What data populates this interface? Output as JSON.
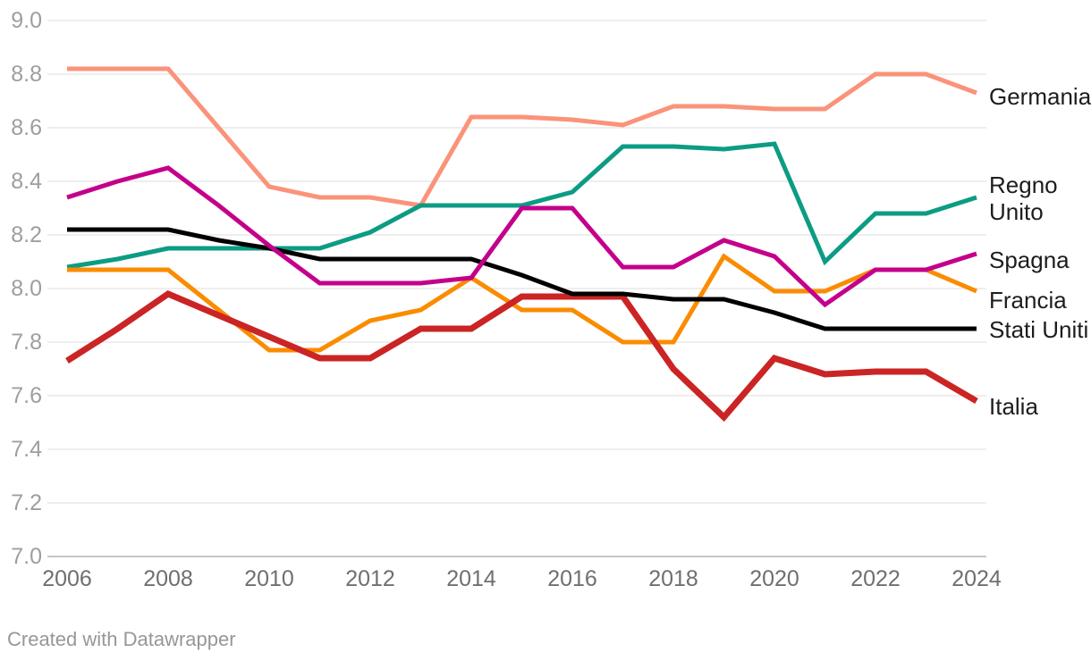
{
  "chart_data": {
    "type": "line",
    "title": "",
    "x": [
      2006,
      2007,
      2008,
      2009,
      2010,
      2011,
      2012,
      2013,
      2014,
      2015,
      2016,
      2017,
      2018,
      2019,
      2020,
      2021,
      2022,
      2023,
      2024
    ],
    "x_tick_labels": [
      "2006",
      "2008",
      "2010",
      "2012",
      "2014",
      "2016",
      "2018",
      "2020",
      "2022",
      "2024"
    ],
    "y_axis": {
      "min": 7.0,
      "max": 9.0,
      "step": 0.2,
      "tick_labels": [
        "9.0",
        "8.8",
        "8.6",
        "8.4",
        "8.2",
        "8.0",
        "7.8",
        "7.6",
        "7.4",
        "7.2",
        "7.0"
      ]
    },
    "grid": true,
    "legend_position": "direct-labels-right",
    "series": [
      {
        "name": "Germania",
        "label_lines": [
          "Germania"
        ],
        "color": "#FA937A",
        "values": [
          8.82,
          8.82,
          8.82,
          8.6,
          8.38,
          8.34,
          8.34,
          8.31,
          8.64,
          8.64,
          8.63,
          8.61,
          8.68,
          8.68,
          8.67,
          8.67,
          8.8,
          8.8,
          8.73
        ]
      },
      {
        "name": "Regno Unito",
        "label_lines": [
          "Regno",
          "Unito"
        ],
        "color": "#0C9C84",
        "values": [
          8.08,
          8.11,
          8.15,
          8.15,
          8.15,
          8.15,
          8.21,
          8.31,
          8.31,
          8.31,
          8.36,
          8.53,
          8.53,
          8.52,
          8.54,
          8.1,
          8.28,
          8.28,
          8.34
        ]
      },
      {
        "name": "Spagna",
        "label_lines": [
          "Spagna"
        ],
        "color": "#C4008B",
        "values": [
          8.34,
          8.4,
          8.45,
          8.31,
          8.16,
          8.02,
          8.02,
          8.02,
          8.04,
          8.3,
          8.3,
          8.08,
          8.08,
          8.18,
          8.12,
          7.94,
          8.07,
          8.07,
          8.13
        ]
      },
      {
        "name": "Francia",
        "label_lines": [
          "Francia"
        ],
        "color": "#FA8C00",
        "values": [
          8.07,
          8.07,
          8.07,
          7.92,
          7.77,
          7.77,
          7.88,
          7.92,
          8.04,
          7.92,
          7.92,
          7.8,
          7.8,
          8.12,
          7.99,
          7.99,
          8.07,
          8.07,
          7.99
        ]
      },
      {
        "name": "Stati Uniti",
        "label_lines": [
          "Stati Uniti"
        ],
        "color": "#000000",
        "values": [
          8.22,
          8.22,
          8.22,
          8.18,
          8.15,
          8.11,
          8.11,
          8.11,
          8.11,
          8.05,
          7.98,
          7.98,
          7.96,
          7.96,
          7.91,
          7.85,
          7.85,
          7.85,
          7.85
        ]
      },
      {
        "name": "Italia",
        "label_lines": [
          "Italia"
        ],
        "color": "#CB2424",
        "values": [
          7.73,
          7.85,
          7.98,
          7.9,
          7.82,
          7.74,
          7.74,
          7.85,
          7.85,
          7.97,
          7.97,
          7.97,
          7.7,
          7.52,
          7.74,
          7.68,
          7.69,
          7.69,
          7.58
        ]
      }
    ]
  },
  "footer": {
    "credit": "Created with Datawrapper"
  }
}
